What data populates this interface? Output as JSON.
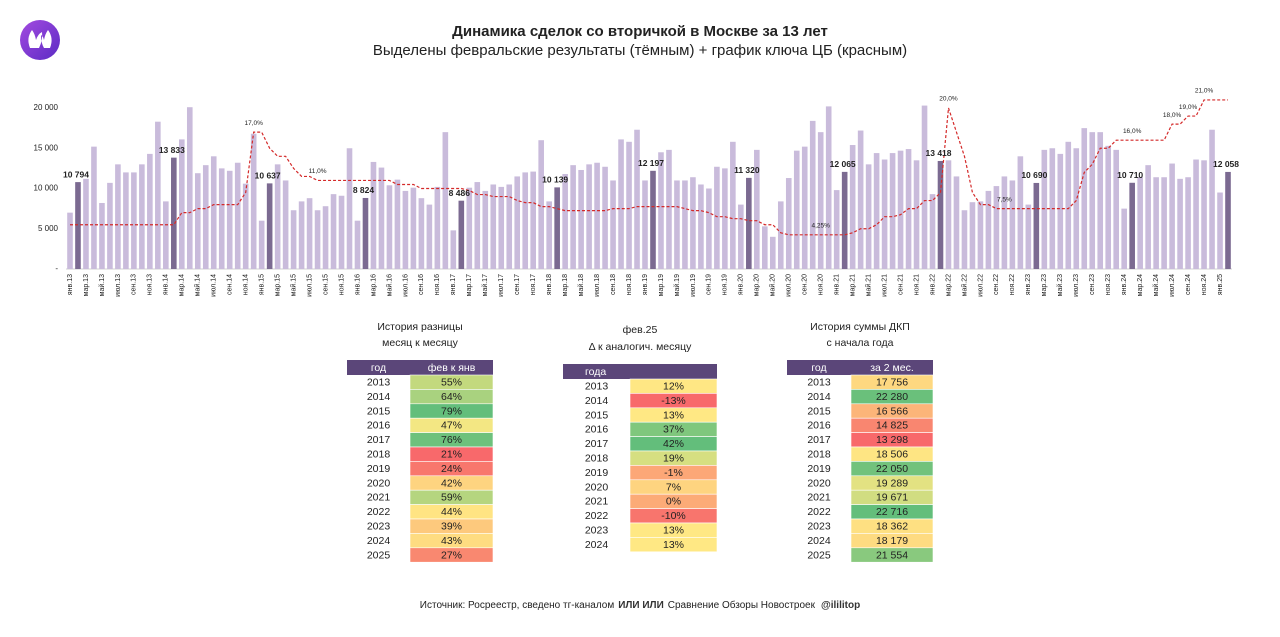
{
  "chart_data": {
    "type": "bar",
    "title": "Динамика сделок со вторичкой в Москве за 13 лет",
    "subtitle": "Выделены февральские результаты (тёмным) + график ключа ЦБ (красным)",
    "categories": [
      "янв.13",
      null,
      "мар.13",
      null,
      "май.13",
      null,
      "июл.13",
      null,
      "сен.13",
      null,
      "ноя.13",
      null,
      "янв.14",
      null,
      "мар.14",
      null,
      "май.14",
      null,
      "июл.14",
      null,
      "сен.14",
      null,
      "ноя.14",
      null,
      "янв.15",
      null,
      "мар.15",
      null,
      "май.15",
      null,
      "июл.15",
      null,
      "сен.15",
      null,
      "ноя.15",
      null,
      "янв.16",
      null,
      "мар.16",
      null,
      "май.16",
      null,
      "июл.16",
      null,
      "сен.16",
      null,
      "ноя.16",
      null,
      "янв.17",
      null,
      "мар.17",
      null,
      "май.17",
      null,
      "июл.17",
      null,
      "сен.17",
      null,
      "ноя.17",
      null,
      "янв.18",
      null,
      "мар.18",
      null,
      "май.18",
      null,
      "июл.18",
      null,
      "сен.18",
      null,
      "ноя.18",
      null,
      "янв.19",
      null,
      "мар.19",
      null,
      "май.19",
      null,
      "июл.19",
      null,
      "сен.19",
      null,
      "ноя.19",
      null,
      "янв.20",
      null,
      "мар.20",
      null,
      "май.20",
      null,
      "июл.20",
      null,
      "сен.20",
      null,
      "ноя.20",
      null,
      "янв.21",
      null,
      "мар.21",
      null,
      "май.21",
      null,
      "июл.21",
      null,
      "сен.21",
      null,
      "ноя.21",
      null,
      "янв.22",
      null,
      "мар.22",
      null,
      "май.22",
      null,
      "июл.22",
      null,
      "сен.22",
      null,
      "ноя.22",
      null,
      "янв.23",
      null,
      "мар.23",
      null,
      "май.23",
      null,
      "июл.23",
      null,
      "сен.23",
      null,
      "ноя.23",
      null,
      "янв.24",
      null,
      "мар.24",
      null,
      "май.24",
      null,
      "июл.24",
      null,
      "сен.24",
      null,
      "ноя.24",
      null,
      "янв.25",
      null
    ],
    "series": [
      {
        "type": "bar",
        "color": "#c9bbdb",
        "highlight_color": "#7b6a91",
        "values": [
          7000,
          10794,
          11200,
          15200,
          8200,
          10700,
          13000,
          12000,
          12000,
          13000,
          14300,
          18300,
          8400,
          13833,
          16100,
          20100,
          11900,
          12900,
          14000,
          12500,
          12200,
          13200,
          10600,
          16800,
          6000,
          10637,
          13000,
          11000,
          7300,
          8400,
          8800,
          7300,
          7800,
          9300,
          9100,
          15000,
          6000,
          8824,
          13300,
          12600,
          10400,
          11100,
          9700,
          10100,
          8800,
          8000,
          10200,
          17000,
          4800,
          8486,
          10100,
          10800,
          9700,
          10500,
          10200,
          10500,
          11500,
          12000,
          12100,
          16000,
          8400,
          10139,
          11800,
          12900,
          12300,
          13000,
          13200,
          12700,
          11000,
          16100,
          15800,
          17300,
          11000,
          12197,
          14500,
          14800,
          11000,
          11000,
          11400,
          10500,
          10000,
          12700,
          12500,
          15800,
          8000,
          11320,
          14800,
          5300,
          4000,
          8400,
          11300,
          14700,
          15200,
          18400,
          17000,
          20200,
          9800,
          12065,
          15400,
          17200,
          13000,
          14400,
          13600,
          14400,
          14700,
          14900,
          13500,
          20300,
          9300,
          13418,
          13500,
          11500,
          7300,
          8300,
          8400,
          9700,
          10300,
          11500,
          11000,
          14000,
          8000,
          10690,
          14800,
          15000,
          14300,
          15800,
          15000,
          17500,
          17000,
          17000,
          15300,
          14800,
          7500,
          10710,
          11400,
          12900,
          11400,
          11400,
          13100,
          11200,
          11400,
          13600,
          13500,
          17300,
          9500,
          12058
        ],
        "value_labels": [
          null,
          "10 794",
          null,
          null,
          null,
          null,
          null,
          null,
          null,
          null,
          null,
          null,
          null,
          "13 833",
          null,
          null,
          null,
          null,
          null,
          null,
          null,
          null,
          null,
          null,
          null,
          "10 637",
          null,
          null,
          null,
          null,
          null,
          null,
          null,
          null,
          null,
          null,
          null,
          "8 824",
          null,
          null,
          null,
          null,
          null,
          null,
          null,
          null,
          null,
          null,
          null,
          "8 486",
          null,
          null,
          null,
          null,
          null,
          null,
          null,
          null,
          null,
          null,
          null,
          "10 139",
          null,
          null,
          null,
          null,
          null,
          null,
          null,
          null,
          null,
          null,
          null,
          "12 197",
          null,
          null,
          null,
          null,
          null,
          null,
          null,
          null,
          null,
          null,
          null,
          "11 320",
          null,
          null,
          null,
          null,
          null,
          null,
          null,
          null,
          null,
          null,
          null,
          "12 065",
          null,
          null,
          null,
          null,
          null,
          null,
          null,
          null,
          null,
          null,
          null,
          "13 418",
          null,
          null,
          null,
          null,
          null,
          null,
          null,
          null,
          null,
          null,
          null,
          "10 690",
          null,
          null,
          null,
          null,
          null,
          null,
          null,
          null,
          null,
          null,
          null,
          "10 710",
          null,
          null,
          null,
          null,
          null,
          null,
          null,
          null,
          null,
          null,
          null,
          "12 058"
        ]
      },
      {
        "type": "line",
        "axis": "y2",
        "color": "#d42a2a",
        "values": [
          5.5,
          5.5,
          5.5,
          5.5,
          5.5,
          5.5,
          5.5,
          5.5,
          5.5,
          5.5,
          5.5,
          5.5,
          5.5,
          5.5,
          7,
          7,
          7.5,
          7.5,
          8,
          8,
          8,
          8,
          9.5,
          17,
          17,
          15,
          14,
          14,
          12.5,
          11.5,
          11.5,
          11,
          11,
          11,
          11,
          11,
          11,
          11,
          11,
          11,
          11,
          10.5,
          10.5,
          10.5,
          10,
          10,
          10,
          10,
          10,
          10,
          9.75,
          9.25,
          9.25,
          9,
          9,
          9,
          8.5,
          8.25,
          8.25,
          7.75,
          7.75,
          7.5,
          7.25,
          7.25,
          7.25,
          7.25,
          7.25,
          7.25,
          7.5,
          7.5,
          7.5,
          7.75,
          7.75,
          7.75,
          7.75,
          7.75,
          7.75,
          7.5,
          7.25,
          7.25,
          7,
          6.5,
          6.5,
          6.25,
          6.25,
          6,
          6,
          5.5,
          5.5,
          4.5,
          4.25,
          4.25,
          4.25,
          4.25,
          4.25,
          4.25,
          4.25,
          4.25,
          4.5,
          5,
          5,
          5.5,
          6.5,
          6.5,
          6.75,
          7.5,
          7.5,
          8.5,
          8.5,
          9.5,
          20,
          17,
          14,
          9.5,
          8,
          8,
          7.5,
          7.5,
          7.5,
          7.5,
          7.5,
          7.5,
          7.5,
          7.5,
          7.5,
          7.5,
          8.5,
          12,
          13,
          15,
          15,
          16,
          16,
          16,
          16,
          16,
          16,
          16,
          18,
          18,
          19,
          19,
          21,
          21,
          21,
          21
        ],
        "value_labels": [
          null,
          null,
          null,
          null,
          null,
          null,
          null,
          null,
          null,
          null,
          null,
          null,
          null,
          null,
          null,
          null,
          null,
          null,
          null,
          null,
          null,
          null,
          null,
          "17,0%",
          null,
          null,
          null,
          null,
          null,
          null,
          null,
          "11,0%",
          null,
          null,
          null,
          null,
          null,
          null,
          null,
          null,
          null,
          null,
          null,
          null,
          null,
          null,
          null,
          null,
          null,
          null,
          null,
          null,
          null,
          null,
          null,
          null,
          null,
          null,
          null,
          null,
          null,
          null,
          null,
          null,
          null,
          null,
          null,
          null,
          null,
          null,
          null,
          null,
          null,
          null,
          null,
          null,
          null,
          null,
          null,
          null,
          null,
          null,
          null,
          null,
          null,
          null,
          null,
          null,
          null,
          null,
          null,
          null,
          null,
          null,
          "4,25%",
          null,
          null,
          null,
          null,
          null,
          null,
          null,
          null,
          null,
          null,
          null,
          null,
          null,
          null,
          null,
          "20,0%",
          null,
          null,
          null,
          null,
          null,
          null,
          "7,5%",
          null,
          null,
          null,
          null,
          null,
          null,
          null,
          null,
          null,
          null,
          null,
          null,
          null,
          null,
          null,
          "16,0%",
          null,
          null,
          null,
          null,
          "18,0%",
          null,
          "19,0%",
          null,
          "21,0%",
          null,
          null,
          null
        ]
      }
    ],
    "ylim": [
      0,
      20000
    ],
    "yticks": [
      {
        "value": 0,
        "label": "-"
      },
      {
        "value": 5000,
        "label": "5 000"
      },
      {
        "value": 10000,
        "label": "10 000"
      },
      {
        "value": 15000,
        "label": "15 000"
      },
      {
        "value": 20000,
        "label": "20 000"
      }
    ],
    "y2lim": [
      0,
      20
    ],
    "grid": false
  },
  "tables": [
    {
      "title": [
        "История разницы",
        "месяц к месяцу"
      ],
      "header": [
        "год",
        "фев к янв"
      ],
      "header_color": "#5b4679",
      "rows": [
        [
          "2013",
          "55%"
        ],
        [
          "2014",
          "64%"
        ],
        [
          "2015",
          "79%"
        ],
        [
          "2016",
          "47%"
        ],
        [
          "2017",
          "76%"
        ],
        [
          "2018",
          "21%"
        ],
        [
          "2019",
          "24%"
        ],
        [
          "2020",
          "42%"
        ],
        [
          "2021",
          "59%"
        ],
        [
          "2022",
          "44%"
        ],
        [
          "2023",
          "39%"
        ],
        [
          "2024",
          "43%"
        ],
        [
          "2025",
          "27%"
        ]
      ],
      "colors": [
        "#c3d97e",
        "#a9d27f",
        "#63be7b",
        "#f3e783",
        "#6dc17c",
        "#f8696b",
        "#f8776d",
        "#fed480",
        "#b5d57f",
        "#ffe483",
        "#fdc97d",
        "#fedc81",
        "#f98870"
      ]
    },
    {
      "title": [
        "фев.25",
        "Δ к аналогич. месяцу"
      ],
      "header": [
        "года"
      ],
      "header_color": "#5b4679",
      "rows": [
        [
          "2013",
          "12%"
        ],
        [
          "2014",
          "-13%"
        ],
        [
          "2015",
          "13%"
        ],
        [
          "2016",
          "37%"
        ],
        [
          "2017",
          "42%"
        ],
        [
          "2018",
          "19%"
        ],
        [
          "2019",
          "-1%"
        ],
        [
          "2020",
          "7%"
        ],
        [
          "2021",
          "0%"
        ],
        [
          "2022",
          "-10%"
        ],
        [
          "2023",
          "13%"
        ],
        [
          "2024",
          "13%"
        ]
      ],
      "colors": [
        "#ffe784",
        "#f8696b",
        "#ffe884",
        "#7fc77d",
        "#63be7b",
        "#d6df81",
        "#fca777",
        "#fed480",
        "#fcab77",
        "#f8756d",
        "#ffe884",
        "#ffe884"
      ]
    },
    {
      "title": [
        "История суммы ДКП",
        "с начала года"
      ],
      "header": [
        "год",
        "за 2 мес."
      ],
      "header_color": "#5b4679",
      "rows": [
        [
          "2013",
          "17 756"
        ],
        [
          "2014",
          "22 280"
        ],
        [
          "2015",
          "16 566"
        ],
        [
          "2016",
          "14 825"
        ],
        [
          "2017",
          "13 298"
        ],
        [
          "2018",
          "18 506"
        ],
        [
          "2019",
          "22 050"
        ],
        [
          "2020",
          "19 289"
        ],
        [
          "2021",
          "19 671"
        ],
        [
          "2022",
          "22 716"
        ],
        [
          "2023",
          "18 362"
        ],
        [
          "2024",
          "18 179"
        ],
        [
          "2025",
          "21 554"
        ]
      ],
      "colors": [
        "#fed880",
        "#6ac07b",
        "#fcb579",
        "#f98670",
        "#f8696b",
        "#fee583",
        "#72c27c",
        "#e3e282",
        "#d1dd81",
        "#63be7b",
        "#fee082",
        "#fedb81",
        "#89c97e"
      ]
    }
  ],
  "footer": {
    "source": "Источник: Росреестр, сведено тг-каналом",
    "channel": "ИЛИ ИЛИ",
    "rest": "Сравнение Обзоры Новостроек",
    "handle": "@ililitop"
  }
}
